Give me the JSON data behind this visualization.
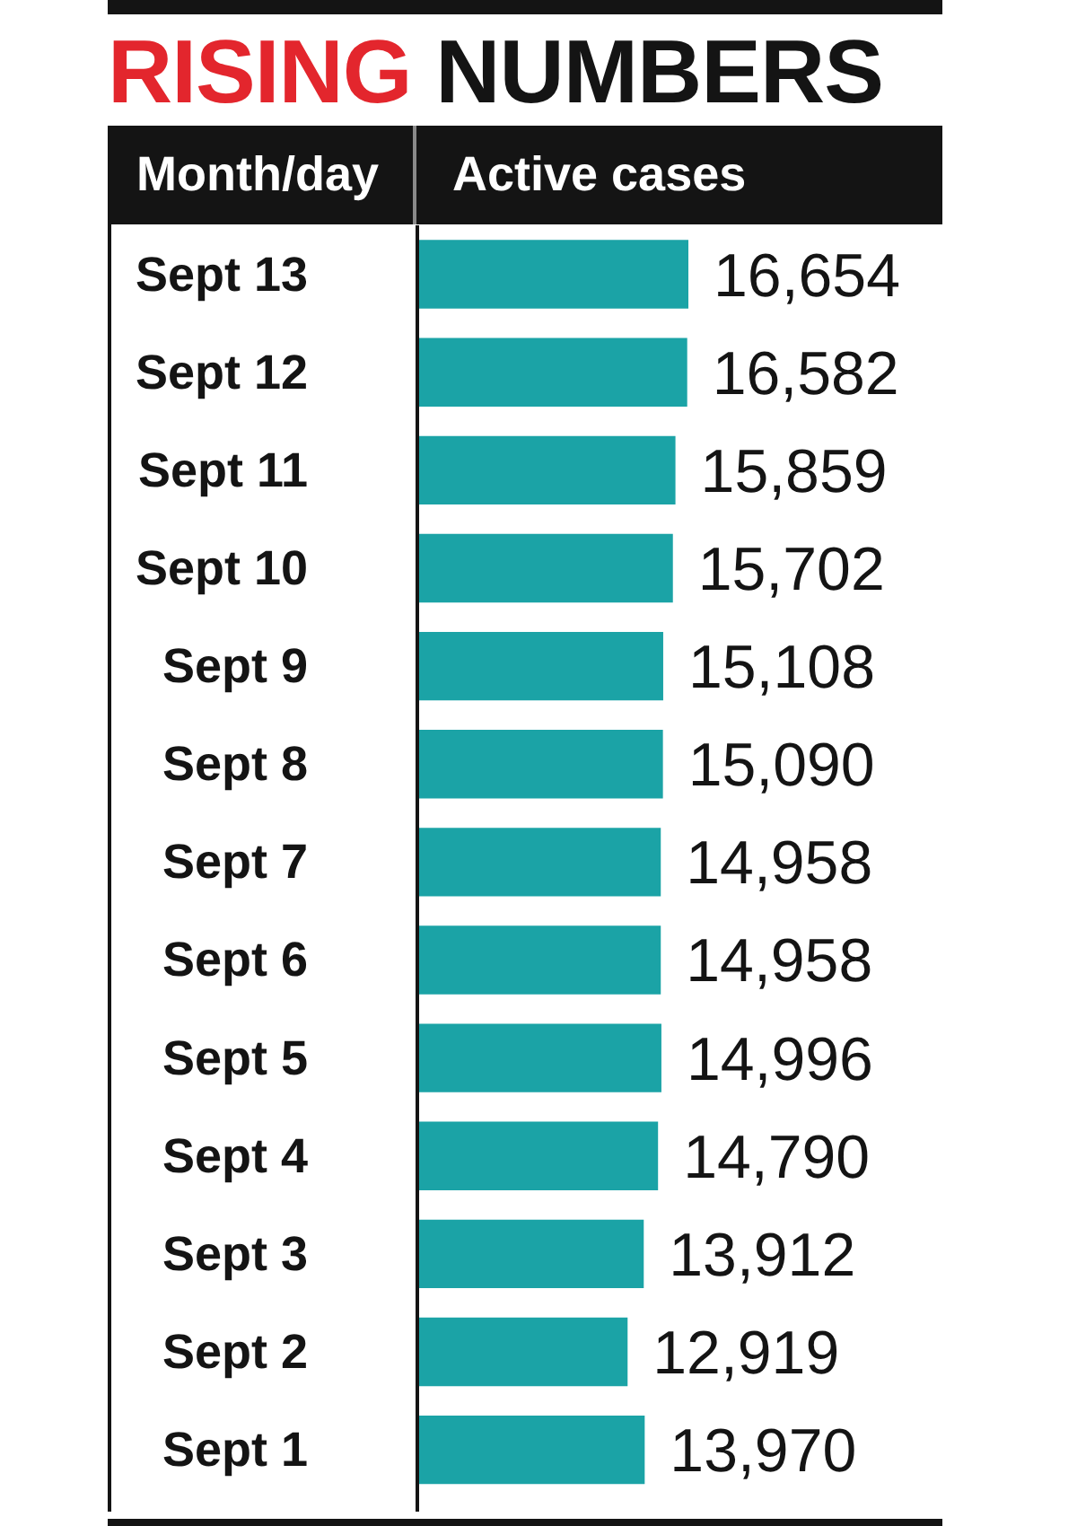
{
  "chart_data": {
    "type": "bar",
    "orientation": "horizontal",
    "title": "RISING NUMBERS",
    "ylabel": "Month/day",
    "xlabel": "Active cases",
    "categories": [
      "Sept 13",
      "Sept 12",
      "Sept 11",
      "Sept 10",
      "Sept 9",
      "Sept 8",
      "Sept 7",
      "Sept 6",
      "Sept 5",
      "Sept 4",
      "Sept 3",
      "Sept 2",
      "Sept 1"
    ],
    "values": [
      16654,
      16582,
      15859,
      15702,
      15108,
      15090,
      14958,
      14958,
      14996,
      14790,
      13912,
      12919,
      13970
    ],
    "value_labels": [
      "16,654",
      "16,582",
      "15,859",
      "15,702",
      "15,108",
      "15,090",
      "14,958",
      "14,958",
      "14,996",
      "14,790",
      "13,912",
      "12,919",
      "13,970"
    ],
    "color": "#1ba3a6",
    "tick_labels": "y"
  }
}
